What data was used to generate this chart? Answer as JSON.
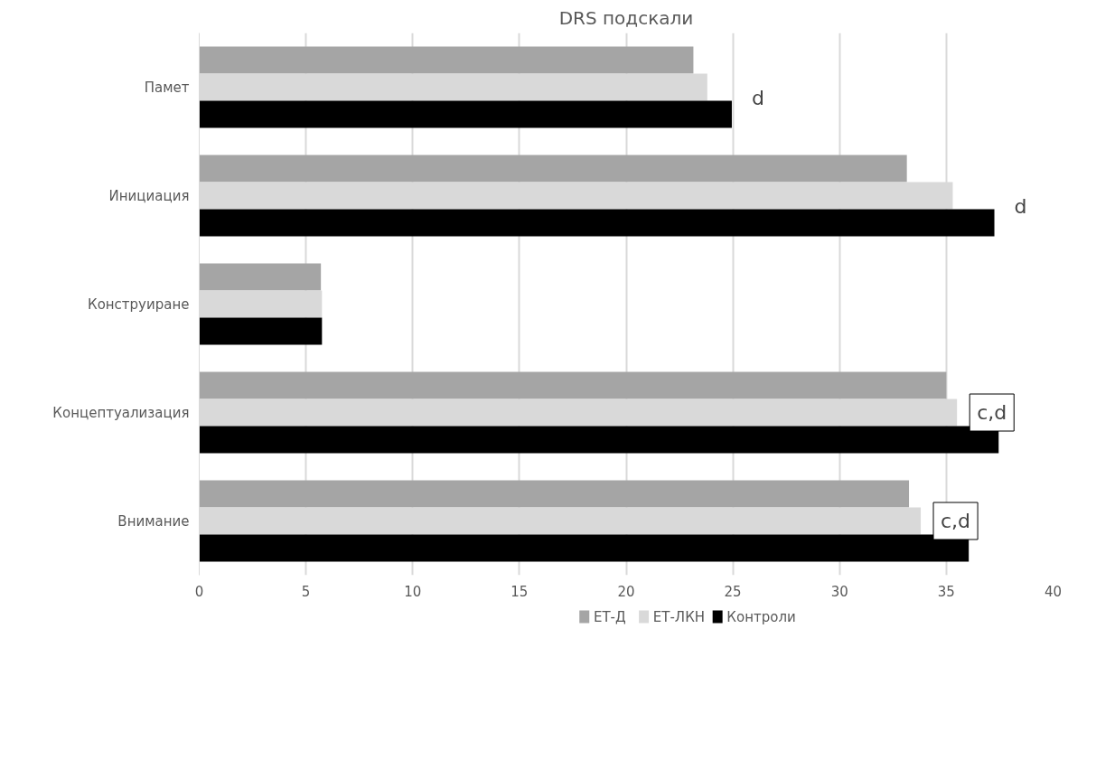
{
  "chart_data": {
    "type": "bar",
    "orientation": "horizontal",
    "title": "DRS подскали",
    "categories": [
      "Памет",
      "Инициация",
      "Конструиране",
      "Концептуализация",
      "Внимание"
    ],
    "series": [
      {
        "name": "ЕТ-Д",
        "color": "#a5a5a5",
        "values": [
          23.15,
          33.15,
          5.7,
          35.0,
          33.25
        ]
      },
      {
        "name": "ЕТ-ЛКН",
        "color": "#d9d9d9",
        "values": [
          23.8,
          35.3,
          5.75,
          35.5,
          33.8
        ]
      },
      {
        "name": "Контроли",
        "color": "#000000",
        "values": [
          24.95,
          37.25,
          5.75,
          37.45,
          36.05
        ]
      }
    ],
    "xlim": [
      0,
      40
    ],
    "xticks": [
      0,
      5,
      10,
      15,
      20,
      25,
      30,
      35,
      40
    ],
    "grid": "x",
    "legend": "bottom",
    "annotations": [
      "d",
      "d",
      "c,d",
      "c,d"
    ]
  }
}
